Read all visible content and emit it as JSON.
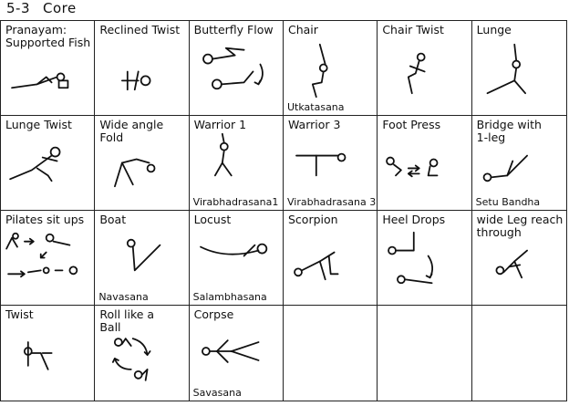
{
  "header": {
    "level": "5-3",
    "title": "Core"
  },
  "poses": [
    {
      "name": "Pranayam:\nSupported Fish",
      "sub": ""
    },
    {
      "name": "Reclined Twist",
      "sub": ""
    },
    {
      "name": "Butterfly Flow",
      "sub": ""
    },
    {
      "name": "Chair",
      "sub": "Utkatasana"
    },
    {
      "name": "Chair Twist",
      "sub": ""
    },
    {
      "name": "Lunge",
      "sub": ""
    },
    {
      "name": "Lunge Twist",
      "sub": ""
    },
    {
      "name": "Wide angle\nFold",
      "sub": ""
    },
    {
      "name": "Warrior 1",
      "sub": "Virabhadrasana1"
    },
    {
      "name": "Warrior 3",
      "sub": "Virabhadrasana 3"
    },
    {
      "name": "Foot Press",
      "sub": ""
    },
    {
      "name": "Bridge with\n1-leg",
      "sub": "Setu Bandha"
    },
    {
      "name": "Pilates sit ups",
      "sub": ""
    },
    {
      "name": "Boat",
      "sub": "Navasana"
    },
    {
      "name": "Locust",
      "sub": "Salambhasana"
    },
    {
      "name": "Scorpion",
      "sub": ""
    },
    {
      "name": "Heel Drops",
      "sub": ""
    },
    {
      "name": "wide Leg reach\nthrough",
      "sub": ""
    },
    {
      "name": "Twist",
      "sub": ""
    },
    {
      "name": "Roll like a\nBall",
      "sub": ""
    },
    {
      "name": "Corpse",
      "sub": "Savasana"
    },
    {
      "name": "",
      "sub": ""
    },
    {
      "name": "",
      "sub": ""
    },
    {
      "name": "",
      "sub": ""
    }
  ]
}
